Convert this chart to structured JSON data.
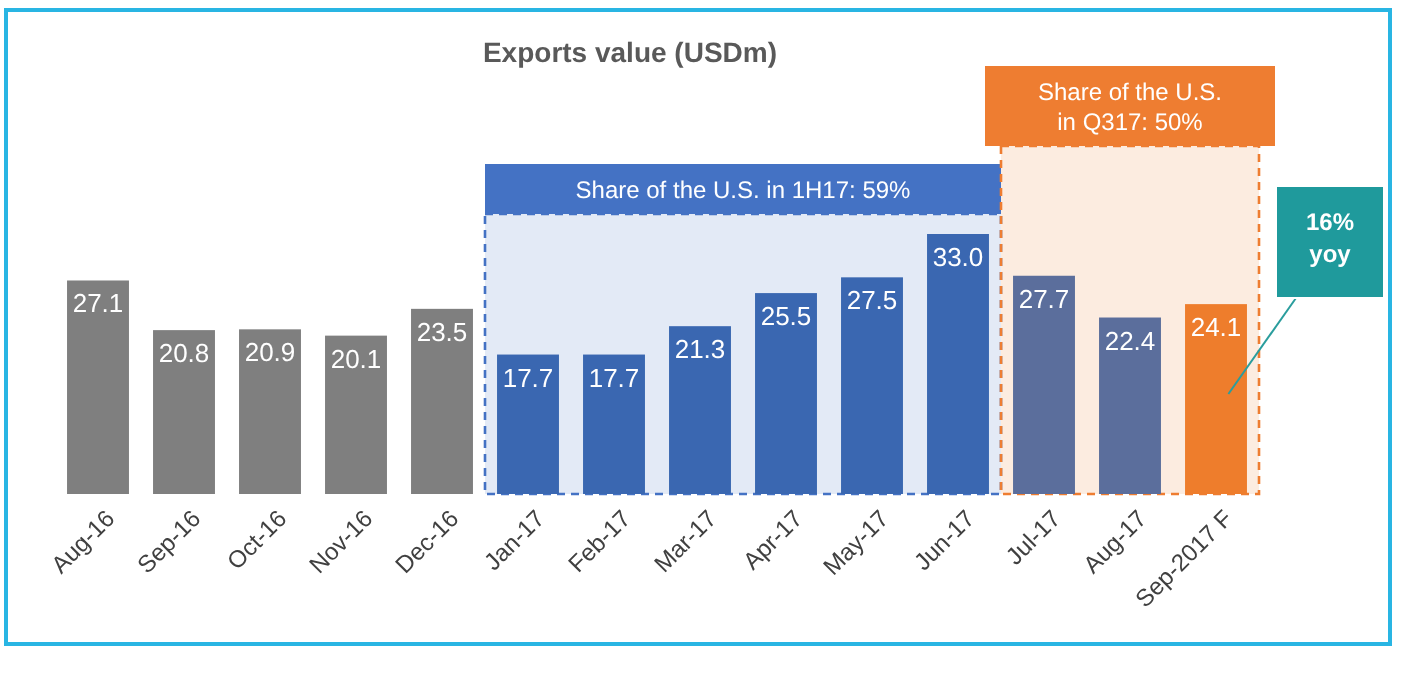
{
  "chart_data": {
    "type": "bar",
    "title": "Exports value (USDm)",
    "categories": [
      "Aug-16",
      "Sep-16",
      "Oct-16",
      "Nov-16",
      "Dec-16",
      "Jan-17",
      "Feb-17",
      "Mar-17",
      "Apr-17",
      "May-17",
      "Jun-17",
      "Jul-17",
      "Aug-17",
      "Sep-2017 F"
    ],
    "values": [
      27.1,
      20.8,
      20.9,
      20.1,
      23.5,
      17.7,
      17.7,
      21.3,
      25.5,
      27.5,
      33.0,
      27.7,
      22.4,
      24.1
    ],
    "colors": [
      "#7f7f7f",
      "#7f7f7f",
      "#7f7f7f",
      "#7f7f7f",
      "#7f7f7f",
      "#3a67b1",
      "#3a67b1",
      "#3a67b1",
      "#3a67b1",
      "#3a67b1",
      "#3a67b1",
      "#5b6e9c",
      "#5b6e9c",
      "#ee7d2c"
    ],
    "relative": false,
    "value_labels": [
      "27.1",
      "20.8",
      "20.9",
      "20.1",
      "23.5",
      "17.7",
      "17.7",
      "21.3",
      "25.5",
      "27.5",
      "33.0",
      "27.7",
      "22.4",
      "24.1"
    ],
    "bands": [
      {
        "axis": "x",
        "from": "Jan-17",
        "to": "Jun-17",
        "label": "Share of the U.S. in 1H17: 59%",
        "color": "#4472c4"
      },
      {
        "axis": "x",
        "from": "Jul-17",
        "to": "Sep-2017 F",
        "label": "Share of the U.S. in Q317:  50%",
        "color": "#ee7d31"
      }
    ],
    "annotations": [
      "16% yoy"
    ]
  }
}
